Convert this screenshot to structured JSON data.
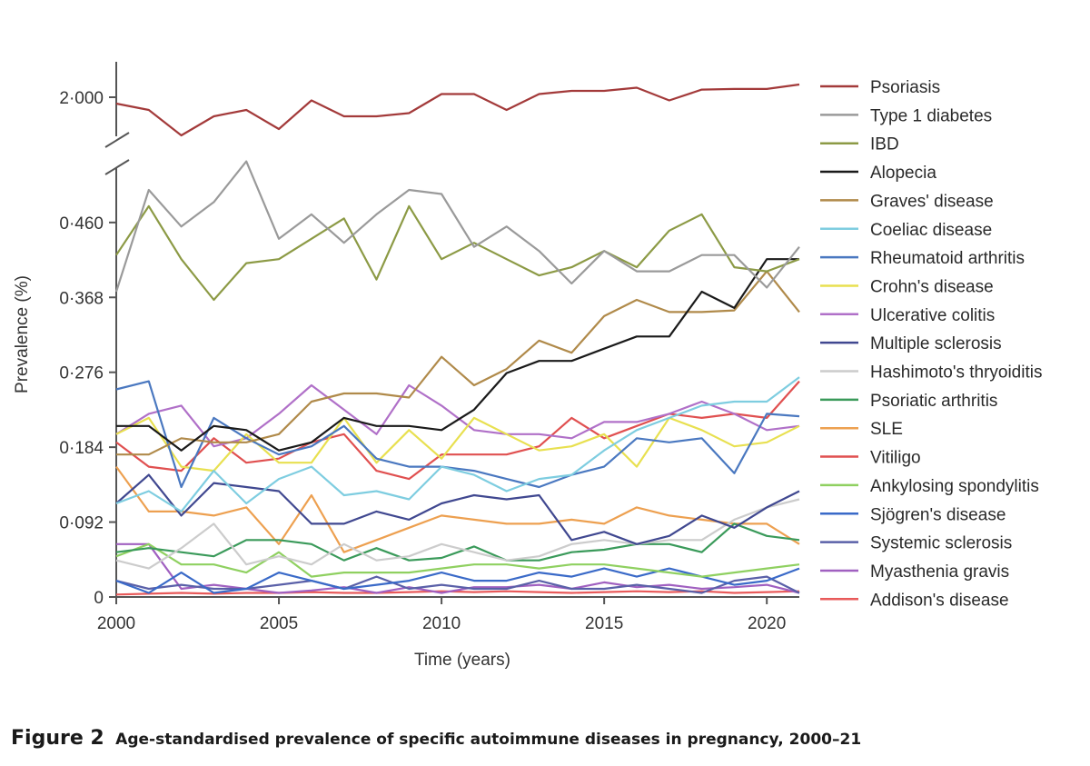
{
  "chart_data": {
    "type": "line",
    "title": "",
    "xlabel": "Time (years)",
    "ylabel": "Prevalence (%)",
    "x": [
      2000,
      2001,
      2002,
      2003,
      2004,
      2005,
      2006,
      2007,
      2008,
      2009,
      2010,
      2011,
      2012,
      2013,
      2014,
      2015,
      2016,
      2017,
      2018,
      2019,
      2020,
      2021
    ],
    "xlim": [
      2000,
      2021
    ],
    "xticks": [
      2000,
      2005,
      2010,
      2015,
      2020
    ],
    "xtick_labels": [
      "2000",
      "2005",
      "2010",
      "2015",
      "2020"
    ],
    "ylim_lower": [
      0,
      0.52
    ],
    "ylim_upper": [
      2.0,
      2.0
    ],
    "y_axis_break": true,
    "yticks": [
      0,
      0.092,
      0.184,
      0.276,
      0.368,
      0.46,
      2.0
    ],
    "ytick_labels": [
      "0",
      "0·092",
      "0·184",
      "0·276",
      "0·368",
      "0·460",
      "2·000"
    ],
    "grid": false,
    "legend_position": "right",
    "series": [
      {
        "name": "Psoriasis",
        "color": "#a33a3a",
        "values": [
          1.99,
          1.98,
          1.94,
          1.97,
          1.98,
          1.95,
          1.995,
          1.97,
          1.97,
          1.975,
          2.005,
          2.005,
          1.98,
          2.005,
          2.01,
          2.01,
          2.015,
          1.995,
          2.012,
          2.013,
          2.013,
          2.02
        ]
      },
      {
        "name": "Type 1 diabetes",
        "color": "#9a9a9a",
        "values": [
          0.375,
          0.5,
          0.455,
          0.485,
          0.535,
          0.44,
          0.47,
          0.435,
          0.47,
          0.5,
          0.495,
          0.43,
          0.455,
          0.425,
          0.385,
          0.425,
          0.4,
          0.4,
          0.42,
          0.42,
          0.38,
          0.43
        ]
      },
      {
        "name": "IBD",
        "color": "#8c9a45",
        "values": [
          0.42,
          0.48,
          0.415,
          0.365,
          0.41,
          0.415,
          0.44,
          0.465,
          0.39,
          0.48,
          0.415,
          0.435,
          0.415,
          0.395,
          0.405,
          0.425,
          0.405,
          0.45,
          0.47,
          0.405,
          0.4,
          0.415
        ]
      },
      {
        "name": "Alopecia",
        "color": "#1a1a1a",
        "values": [
          0.21,
          0.21,
          0.18,
          0.21,
          0.205,
          0.18,
          0.19,
          0.22,
          0.21,
          0.21,
          0.205,
          0.23,
          0.275,
          0.29,
          0.29,
          0.305,
          0.32,
          0.32,
          0.375,
          0.355,
          0.415,
          0.415
        ]
      },
      {
        "name": "Graves' disease",
        "color": "#b08a4a",
        "values": [
          0.175,
          0.175,
          0.195,
          0.19,
          0.19,
          0.2,
          0.24,
          0.25,
          0.25,
          0.245,
          0.295,
          0.26,
          0.28,
          0.315,
          0.3,
          0.345,
          0.365,
          0.35,
          0.35,
          0.352,
          0.4,
          0.35
        ]
      },
      {
        "name": "Coeliac disease",
        "color": "#7ecde0",
        "values": [
          0.115,
          0.13,
          0.105,
          0.155,
          0.115,
          0.145,
          0.16,
          0.125,
          0.13,
          0.12,
          0.16,
          0.15,
          0.13,
          0.145,
          0.15,
          0.18,
          0.205,
          0.22,
          0.235,
          0.24,
          0.24,
          0.27
        ]
      },
      {
        "name": "Rheumatoid arthritis",
        "color": "#4a78c0",
        "values": [
          0.255,
          0.265,
          0.135,
          0.22,
          0.195,
          0.175,
          0.185,
          0.21,
          0.17,
          0.16,
          0.16,
          0.155,
          0.145,
          0.135,
          0.15,
          0.16,
          0.195,
          0.19,
          0.195,
          0.152,
          0.225,
          0.222
        ]
      },
      {
        "name": "Crohn's disease",
        "color": "#e8e050",
        "values": [
          0.2,
          0.22,
          0.16,
          0.155,
          0.2,
          0.165,
          0.165,
          0.22,
          0.165,
          0.205,
          0.17,
          0.22,
          0.2,
          0.18,
          0.185,
          0.2,
          0.16,
          0.22,
          0.205,
          0.185,
          0.19,
          0.21
        ]
      },
      {
        "name": "Ulcerative colitis",
        "color": "#b070c8",
        "values": [
          0.2,
          0.225,
          0.235,
          0.185,
          0.195,
          0.225,
          0.26,
          0.23,
          0.2,
          0.26,
          0.235,
          0.205,
          0.2,
          0.2,
          0.195,
          0.215,
          0.215,
          0.225,
          0.24,
          0.225,
          0.205,
          0.21
        ]
      },
      {
        "name": "Multiple sclerosis",
        "color": "#404890",
        "values": [
          0.115,
          0.15,
          0.1,
          0.14,
          0.135,
          0.13,
          0.09,
          0.09,
          0.105,
          0.095,
          0.115,
          0.125,
          0.12,
          0.125,
          0.07,
          0.08,
          0.065,
          0.075,
          0.1,
          0.085,
          0.11,
          0.13
        ]
      },
      {
        "name": "Hashimoto's thryoiditis",
        "color": "#cccccc",
        "values": [
          0.045,
          0.035,
          0.06,
          0.09,
          0.04,
          0.05,
          0.04,
          0.065,
          0.045,
          0.05,
          0.065,
          0.055,
          0.045,
          0.05,
          0.065,
          0.07,
          0.065,
          0.07,
          0.07,
          0.095,
          0.11,
          0.12
        ]
      },
      {
        "name": "Psoriatic arthritis",
        "color": "#3a9a5a",
        "values": [
          0.055,
          0.06,
          0.055,
          0.05,
          0.07,
          0.07,
          0.065,
          0.045,
          0.06,
          0.045,
          0.048,
          0.062,
          0.045,
          0.045,
          0.055,
          0.058,
          0.065,
          0.065,
          0.055,
          0.09,
          0.075,
          0.07
        ]
      },
      {
        "name": "SLE",
        "color": "#eda050",
        "values": [
          0.16,
          0.105,
          0.105,
          0.1,
          0.11,
          0.065,
          0.125,
          0.055,
          0.07,
          0.085,
          0.1,
          0.095,
          0.09,
          0.09,
          0.095,
          0.09,
          0.11,
          0.1,
          0.095,
          0.09,
          0.09,
          0.065
        ]
      },
      {
        "name": "Vitiligo",
        "color": "#e05050",
        "values": [
          0.19,
          0.16,
          0.155,
          0.195,
          0.165,
          0.17,
          0.19,
          0.2,
          0.155,
          0.145,
          0.175,
          0.175,
          0.175,
          0.185,
          0.22,
          0.195,
          0.21,
          0.225,
          0.22,
          0.225,
          0.22,
          0.265
        ]
      },
      {
        "name": "Ankylosing spondylitis",
        "color": "#8fd060",
        "values": [
          0.05,
          0.065,
          0.04,
          0.04,
          0.03,
          0.055,
          0.025,
          0.03,
          0.03,
          0.03,
          0.035,
          0.04,
          0.04,
          0.035,
          0.04,
          0.04,
          0.035,
          0.03,
          0.025,
          0.03,
          0.035,
          0.04
        ]
      },
      {
        "name": "Sjögren's disease",
        "color": "#3a6ac8",
        "values": [
          0.02,
          0.005,
          0.03,
          0.005,
          0.01,
          0.03,
          0.02,
          0.01,
          0.015,
          0.02,
          0.03,
          0.02,
          0.02,
          0.03,
          0.025,
          0.035,
          0.025,
          0.035,
          0.025,
          0.015,
          0.02,
          0.035
        ]
      },
      {
        "name": "Systemic sclerosis",
        "color": "#5a60a8",
        "values": [
          0.02,
          0.01,
          0.015,
          0.01,
          0.01,
          0.015,
          0.02,
          0.01,
          0.025,
          0.01,
          0.015,
          0.01,
          0.01,
          0.02,
          0.01,
          0.01,
          0.015,
          0.01,
          0.005,
          0.02,
          0.025,
          0.005
        ]
      },
      {
        "name": "Myasthenia gravis",
        "color": "#a060c0",
        "values": [
          0.065,
          0.065,
          0.01,
          0.015,
          0.01,
          0.005,
          0.008,
          0.012,
          0.005,
          0.012,
          0.005,
          0.012,
          0.012,
          0.015,
          0.01,
          0.018,
          0.012,
          0.015,
          0.01,
          0.012,
          0.015,
          0.005
        ]
      },
      {
        "name": "Addison's disease",
        "color": "#e85a5a",
        "values": [
          0.003,
          0.004,
          0.005,
          0.004,
          0.005,
          0.005,
          0.006,
          0.005,
          0.005,
          0.006,
          0.007,
          0.006,
          0.007,
          0.006,
          0.005,
          0.006,
          0.007,
          0.006,
          0.007,
          0.005,
          0.006,
          0.007
        ]
      }
    ]
  },
  "caption": {
    "label": "Figure 2",
    "text": "Age-standardised prevalence of specific autoimmune diseases in pregnancy, 2000–21"
  }
}
